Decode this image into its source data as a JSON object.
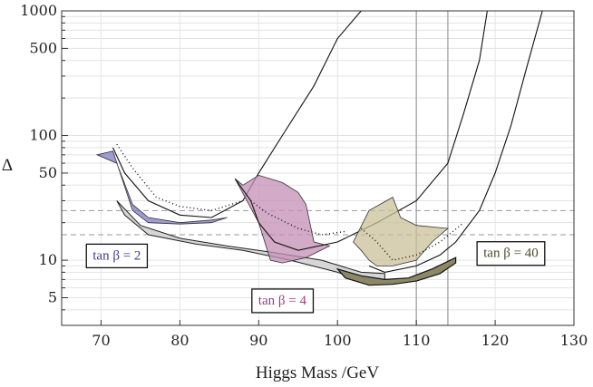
{
  "chart_data": {
    "type": "line",
    "title": "",
    "xlabel": "Higgs Mass /GeV",
    "ylabel": "Δ",
    "yscale": "log",
    "xlim": [
      65,
      130
    ],
    "ylim": [
      3,
      1000
    ],
    "grid": true,
    "x_ticks": [
      70,
      80,
      90,
      100,
      110,
      120,
      130
    ],
    "x_tick_labels": [
      "70",
      "80",
      "90",
      "100",
      "110",
      "120",
      "130"
    ],
    "y_ticks": [
      5,
      10,
      50,
      100,
      500,
      1000
    ],
    "y_tick_labels": [
      "5",
      "10",
      "50",
      "100",
      "500",
      "1000"
    ],
    "reference_lines": {
      "vertical": [
        110,
        114
      ],
      "horizontal_dashed": [
        25,
        16
      ]
    },
    "bands": [
      {
        "name": "tan β = 2",
        "label": "tan β = 2",
        "color": "#7e7ec6",
        "fill": [
          [
            69.5,
            70
          ],
          [
            71.5,
            75
          ],
          [
            74,
            25
          ],
          [
            76,
            20
          ],
          [
            80,
            19.5
          ],
          [
            84,
            20
          ],
          [
            86,
            22
          ],
          [
            84,
            21
          ],
          [
            80,
            20
          ],
          [
            76,
            22
          ],
          [
            74,
            28
          ],
          [
            72,
            60
          ]
        ],
        "curve": [
          [
            71.5,
            80
          ],
          [
            73,
            50
          ],
          [
            76,
            30
          ],
          [
            80,
            23
          ],
          [
            84,
            22
          ],
          [
            88,
            30
          ],
          [
            90,
            50
          ],
          [
            93,
            100
          ],
          [
            97,
            250
          ],
          [
            100,
            600
          ],
          [
            103,
            1000
          ]
        ],
        "dotted": [
          [
            72,
            85
          ],
          [
            74,
            55
          ],
          [
            77,
            32
          ],
          [
            80,
            27
          ],
          [
            84,
            25
          ],
          [
            88,
            30
          ]
        ]
      },
      {
        "name": "tan β = 4",
        "label": "tan β = 4",
        "color": "#c48eb4",
        "fill": [
          [
            87,
            45
          ],
          [
            90,
            20
          ],
          [
            91.5,
            10
          ],
          [
            93,
            9.5
          ],
          [
            96,
            10.5
          ],
          [
            99,
            13
          ],
          [
            97,
            14
          ],
          [
            96,
            28
          ],
          [
            95,
            35
          ],
          [
            93,
            42
          ],
          [
            90,
            48
          ],
          [
            88,
            40
          ]
        ],
        "curve": [
          [
            87,
            45
          ],
          [
            89,
            30
          ],
          [
            90,
            20
          ],
          [
            92,
            14
          ],
          [
            95,
            12
          ],
          [
            100,
            14
          ],
          [
            105,
            20
          ],
          [
            110,
            30
          ],
          [
            114,
            60
          ],
          [
            116,
            150
          ],
          [
            118,
            400
          ],
          [
            119,
            1000
          ]
        ],
        "dotted": [
          [
            89,
            30
          ],
          [
            91,
            24
          ],
          [
            95,
            18
          ],
          [
            98,
            16
          ],
          [
            101,
            17
          ]
        ]
      },
      {
        "name": "tan β = 40",
        "label": "tan β = 40",
        "color": "#c9c09a",
        "fill": [
          [
            102,
            14
          ],
          [
            103,
            12
          ],
          [
            104,
            10
          ],
          [
            105,
            9
          ],
          [
            107,
            9
          ],
          [
            110,
            10
          ],
          [
            112,
            14
          ],
          [
            114,
            18
          ],
          [
            110,
            19
          ],
          [
            108,
            22
          ],
          [
            107,
            32
          ],
          [
            104,
            25
          ]
        ],
        "curve": [
          [
            104,
            9
          ],
          [
            106,
            8
          ],
          [
            110,
            9
          ],
          [
            113,
            11
          ],
          [
            115,
            14
          ],
          [
            118,
            25
          ],
          [
            120,
            50
          ],
          [
            122,
            120
          ],
          [
            124,
            350
          ],
          [
            126,
            1000
          ]
        ],
        "dotted": [
          [
            103,
            18
          ],
          [
            105,
            14
          ],
          [
            107,
            10
          ],
          [
            110,
            11
          ],
          [
            113,
            14
          ],
          [
            116,
            20
          ]
        ]
      }
    ],
    "lower_gray_band": {
      "color": "#d6d6d6",
      "upper": [
        [
          72,
          30
        ],
        [
          75,
          19
        ],
        [
          80,
          15
        ],
        [
          86,
          13
        ],
        [
          92,
          11.5
        ],
        [
          98,
          10
        ],
        [
          103,
          8
        ],
        [
          106,
          7.8
        ]
      ],
      "lower": [
        [
          73,
          23
        ],
        [
          76,
          16
        ],
        [
          82,
          13.5
        ],
        [
          88,
          12
        ],
        [
          94,
          10
        ],
        [
          100,
          8
        ],
        [
          104,
          6.5
        ],
        [
          106,
          6.6
        ]
      ]
    },
    "olive_bottom_band": {
      "color": "#8c8766",
      "upper": [
        [
          100,
          8.5
        ],
        [
          103,
          7.5
        ],
        [
          106,
          7
        ],
        [
          109,
          7.2
        ],
        [
          112,
          8.5
        ],
        [
          115,
          10.5
        ]
      ],
      "lower": [
        [
          101,
          7.2
        ],
        [
          104,
          6.3
        ],
        [
          107,
          6.4
        ],
        [
          110,
          6.8
        ],
        [
          113,
          7.8
        ],
        [
          115,
          9.5
        ]
      ]
    },
    "annotations": [
      {
        "text": "tan β = 2",
        "x": 72,
        "y": 11,
        "color": "#3c3c96"
      },
      {
        "text": "tan β = 4",
        "x": 93,
        "y": 4.8,
        "color": "#9a3f80"
      },
      {
        "text": "tan β = 40",
        "x": 122,
        "y": 11.5,
        "color": "#4e4a2c"
      }
    ]
  }
}
